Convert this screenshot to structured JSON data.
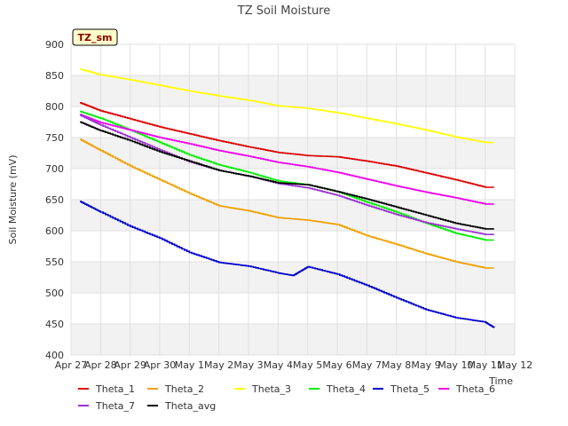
{
  "chart_data": {
    "type": "line",
    "title": "TZ Soil Moisture",
    "badge": "TZ_sm",
    "xlabel": "Time",
    "ylabel": "Soil Moisture (mV)",
    "xlim": [
      0,
      15
    ],
    "ylim": [
      400,
      900
    ],
    "y_ticks": [
      400,
      450,
      500,
      550,
      600,
      650,
      700,
      750,
      800,
      850,
      900
    ],
    "x_ticks": [
      {
        "label": "Apr 27",
        "value": 0
      },
      {
        "label": "Apr 28",
        "value": 1
      },
      {
        "label": "Apr 29",
        "value": 2
      },
      {
        "label": "Apr 30",
        "value": 3
      },
      {
        "label": "May 1",
        "value": 4
      },
      {
        "label": "May 2",
        "value": 5
      },
      {
        "label": "May 3",
        "value": 6
      },
      {
        "label": "May 4",
        "value": 7
      },
      {
        "label": "May 5",
        "value": 8
      },
      {
        "label": "May 6",
        "value": 9
      },
      {
        "label": "May 7",
        "value": 10
      },
      {
        "label": "May 8",
        "value": 11
      },
      {
        "label": "May 9",
        "value": 12
      },
      {
        "label": "May 10",
        "value": 13
      },
      {
        "label": "May 11",
        "value": 14
      },
      {
        "label": "May 12",
        "value": 15
      }
    ],
    "grid": true,
    "legend_position": "bottom",
    "series": [
      {
        "name": "Theta_1",
        "color": "#dd0000",
        "x": [
          0.3,
          1,
          2,
          3,
          4,
          5,
          6,
          7,
          8,
          9,
          10,
          11,
          12,
          13,
          14,
          14.3
        ],
        "y": [
          806,
          793,
          780,
          767,
          756,
          745,
          735,
          726,
          721,
          719,
          712,
          704,
          693,
          682,
          670,
          670
        ]
      },
      {
        "name": "Theta_2",
        "color": "#f0a000",
        "x": [
          0.3,
          1,
          2,
          3,
          4,
          5,
          6,
          7,
          8,
          9,
          10,
          11,
          12,
          13,
          14,
          14.3
        ],
        "y": [
          747,
          729,
          704,
          682,
          660,
          640,
          632,
          621,
          617,
          610,
          592,
          578,
          563,
          550,
          540,
          540
        ]
      },
      {
        "name": "Theta_3",
        "color": "#ffff00",
        "x": [
          0.3,
          1,
          2,
          3,
          4,
          5,
          6,
          7,
          8,
          9,
          10,
          11,
          12,
          13,
          14,
          14.3
        ],
        "y": [
          860,
          851,
          843,
          834,
          825,
          817,
          810,
          801,
          797,
          790,
          781,
          772,
          762,
          751,
          742,
          742
        ]
      },
      {
        "name": "Theta_4",
        "color": "#00ee00",
        "x": [
          0.3,
          1,
          2,
          3,
          4,
          5,
          6,
          7,
          8,
          9,
          10,
          11,
          12,
          13,
          14,
          14.3
        ],
        "y": [
          792,
          781,
          762,
          742,
          722,
          706,
          694,
          680,
          674,
          663,
          646,
          630,
          612,
          596,
          585,
          585
        ]
      },
      {
        "name": "Theta_5",
        "color": "#0000cc",
        "x": [
          0.3,
          1,
          2,
          3,
          4,
          5,
          6,
          7,
          7.5,
          8,
          9,
          10,
          11,
          12,
          13,
          14,
          14.3
        ],
        "y": [
          647,
          630,
          607,
          588,
          565,
          549,
          543,
          532,
          528,
          542,
          530,
          512,
          492,
          473,
          460,
          453,
          444
        ]
      },
      {
        "name": "Theta_6",
        "color": "#ee00ee",
        "x": [
          0.3,
          1,
          2,
          3,
          4,
          5,
          6,
          7,
          8,
          9,
          10,
          11,
          12,
          13,
          14,
          14.3
        ],
        "y": [
          787,
          774,
          762,
          750,
          740,
          729,
          720,
          710,
          703,
          694,
          683,
          672,
          662,
          653,
          643,
          643
        ]
      },
      {
        "name": "Theta_7",
        "color": "#9a32cd",
        "x": [
          0.3,
          1,
          2,
          3,
          4,
          5,
          6,
          7,
          8,
          9,
          10,
          11,
          12,
          13,
          14,
          14.3
        ],
        "y": [
          786,
          770,
          750,
          730,
          711,
          697,
          688,
          676,
          669,
          657,
          641,
          626,
          613,
          603,
          594,
          594
        ]
      },
      {
        "name": "Theta_avg",
        "color": "#000000",
        "x": [
          0.3,
          1,
          2,
          3,
          4,
          5,
          6,
          7,
          8,
          9,
          10,
          11,
          12,
          13,
          14,
          14.3
        ],
        "y": [
          775,
          761,
          745,
          727,
          712,
          697,
          688,
          677,
          674,
          663,
          651,
          638,
          625,
          612,
          603,
          603
        ]
      }
    ]
  }
}
